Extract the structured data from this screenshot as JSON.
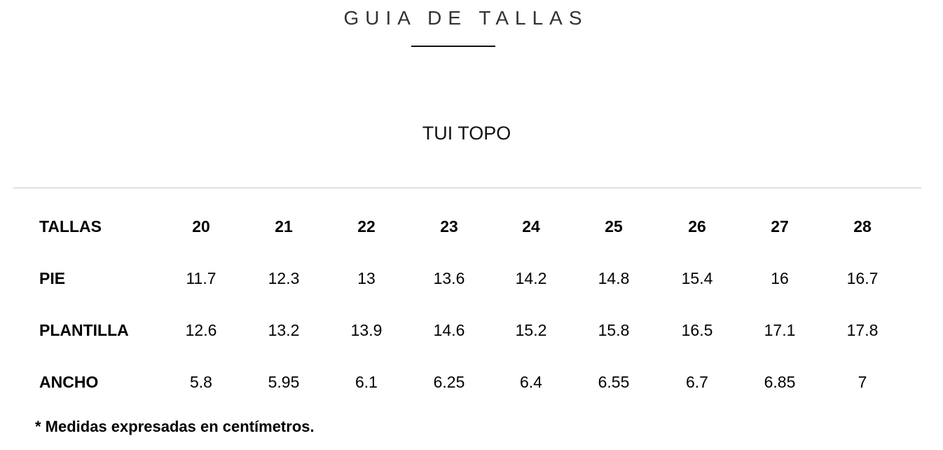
{
  "title": "GUIA DE TALLAS",
  "subtitle": "TUI TOPO",
  "table": {
    "header_label": "TALLAS",
    "sizes": [
      "20",
      "21",
      "22",
      "23",
      "24",
      "25",
      "26",
      "27",
      "28"
    ],
    "rows": [
      {
        "label": "PIE",
        "values": [
          "11.7",
          "12.3",
          "13",
          "13.6",
          "14.2",
          "14.8",
          "15.4",
          "16",
          "16.7"
        ]
      },
      {
        "label": "PLANTILLA",
        "values": [
          "12.6",
          "13.2",
          "13.9",
          "14.6",
          "15.2",
          "15.8",
          "16.5",
          "17.1",
          "17.8"
        ]
      },
      {
        "label": "ANCHO",
        "values": [
          "5.8",
          "5.95",
          "6.1",
          "6.25",
          "6.4",
          "6.55",
          "6.7",
          "6.85",
          "7"
        ]
      }
    ]
  },
  "footnote": "* Medidas expresadas en centímetros."
}
